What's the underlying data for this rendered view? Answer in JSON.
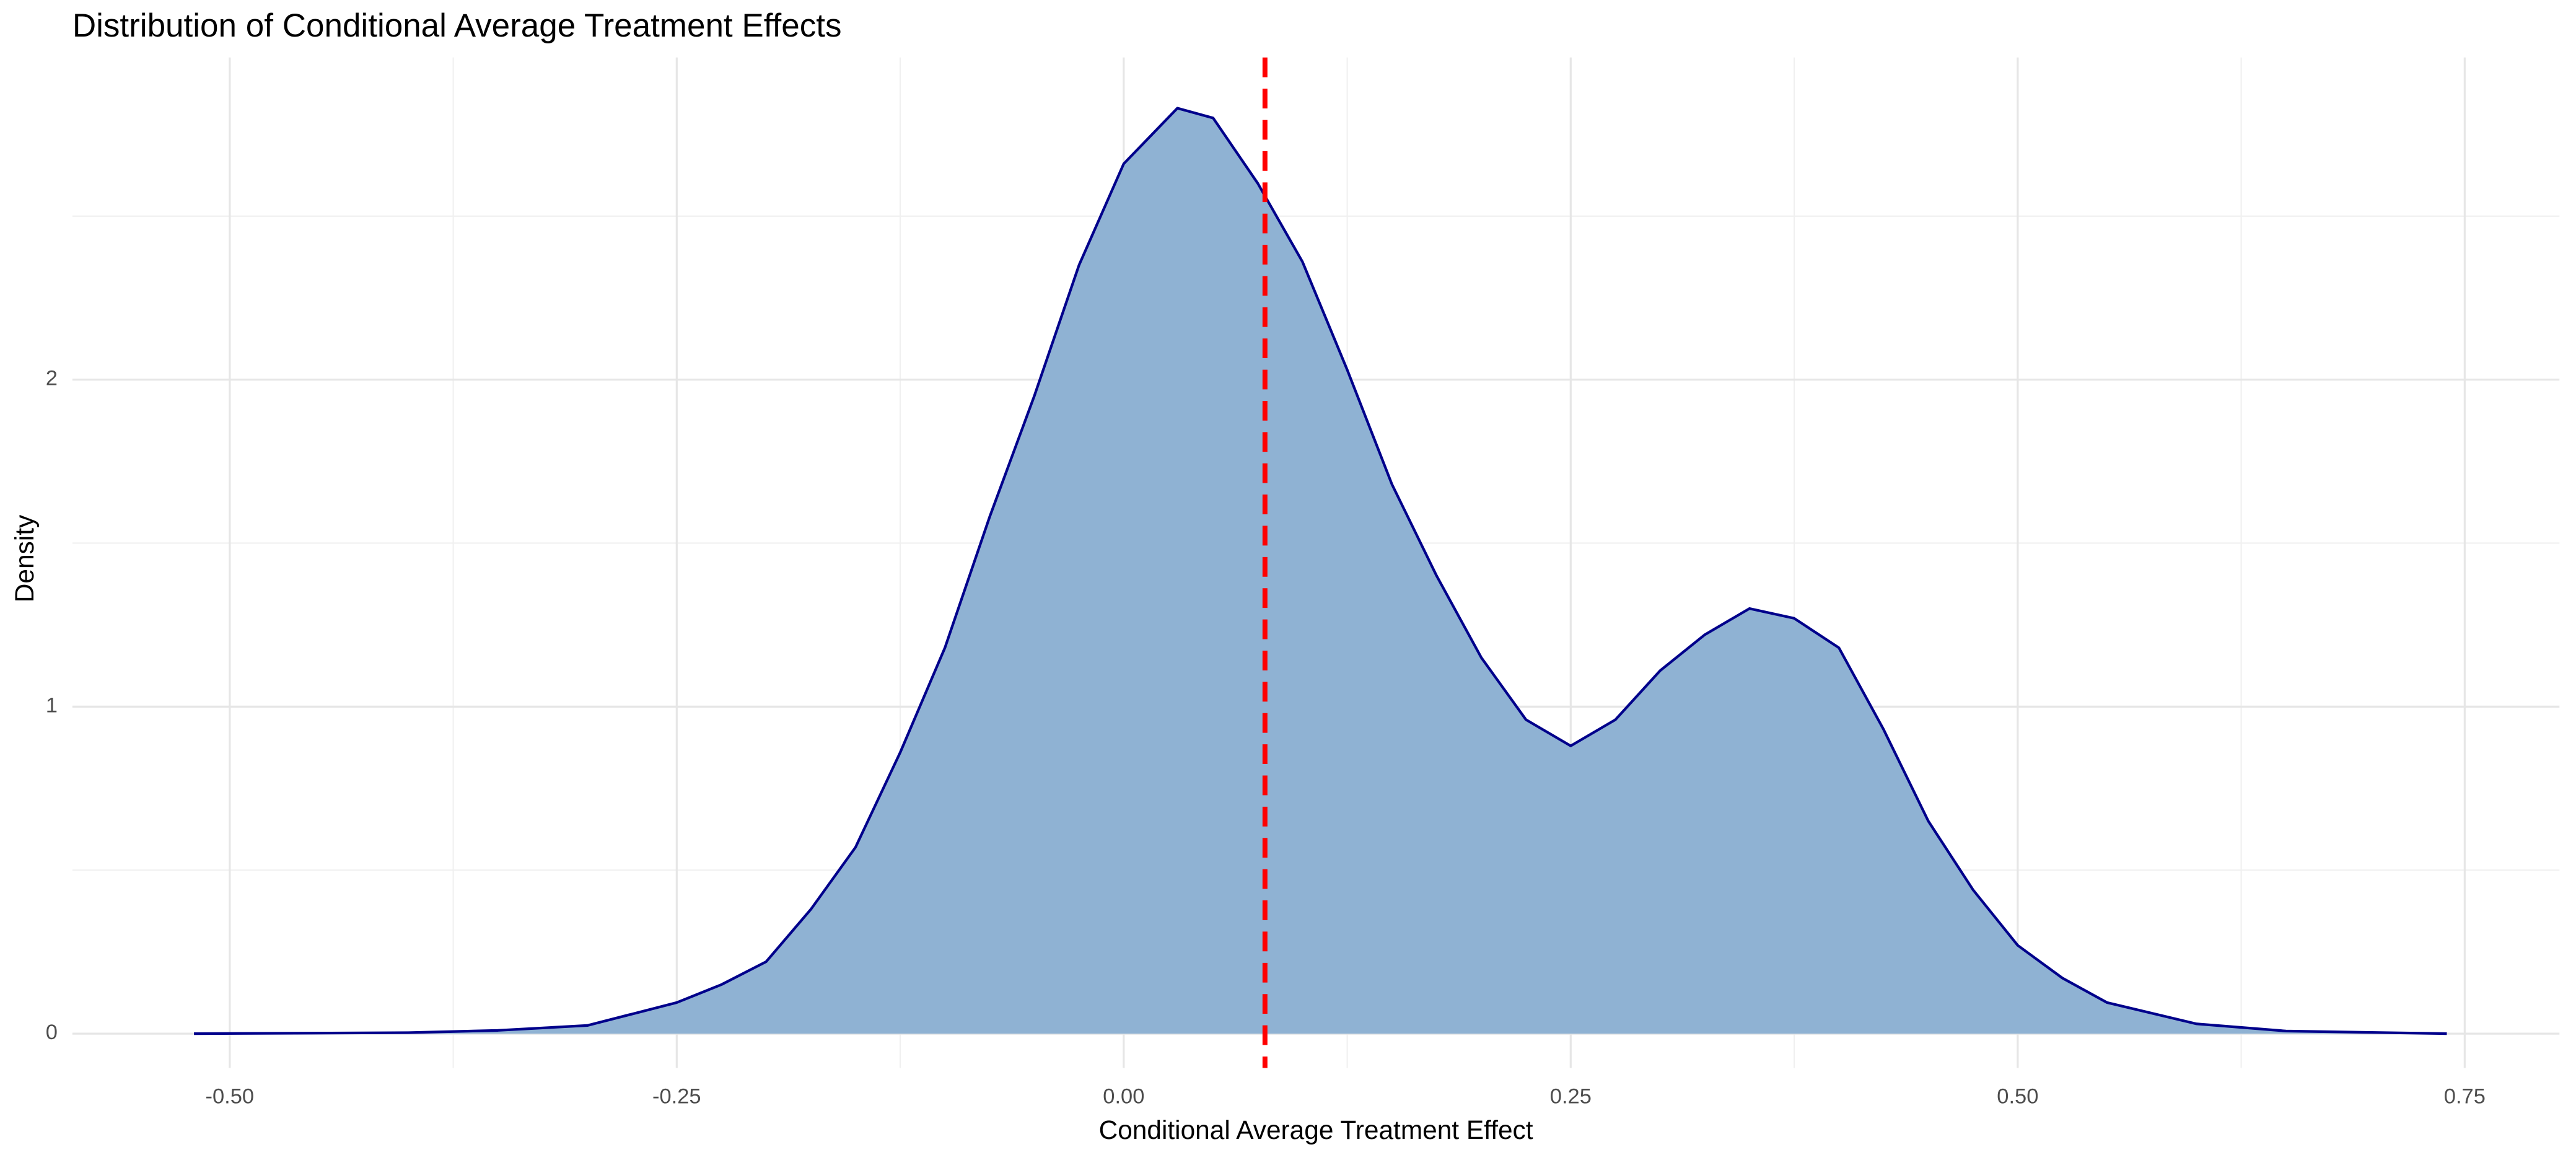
{
  "chart_data": {
    "type": "density",
    "title": "Distribution of Conditional Average Treatment Effects",
    "x_label": "Conditional Average Treatment Effect",
    "y_label": "Density",
    "x": [
      -0.52,
      -0.4,
      -0.35,
      -0.3,
      -0.25,
      -0.225,
      -0.2,
      -0.175,
      -0.15,
      -0.125,
      -0.1,
      -0.075,
      -0.05,
      -0.025,
      0,
      0.03,
      0.05,
      0.075,
      0.1,
      0.125,
      0.15,
      0.175,
      0.2,
      0.225,
      0.25,
      0.275,
      0.3,
      0.325,
      0.35,
      0.375,
      0.4,
      0.425,
      0.45,
      0.475,
      0.5,
      0.525,
      0.55,
      0.6,
      0.65,
      0.74
    ],
    "series": [
      {
        "fill": "#8fb2d3",
        "color": "#00008b",
        "values": [
          0,
          0.003,
          0.01,
          0.025,
          0.095,
          0.15,
          0.22,
          0.38,
          0.57,
          0.86,
          1.18,
          1.58,
          1.95,
          2.35,
          2.66,
          2.83,
          2.8,
          2.6,
          2.36,
          2.03,
          1.68,
          1.4,
          1.15,
          0.96,
          0.88,
          0.96,
          1.11,
          1.22,
          1.3,
          1.27,
          1.18,
          0.93,
          0.65,
          0.44,
          0.27,
          0.17,
          0.095,
          0.03,
          0.008,
          0
        ]
      }
    ],
    "reference_line": {
      "x": 0.079,
      "color": "#ff0000",
      "dashed": true
    },
    "xlim": [
      -0.588,
      0.803
    ],
    "ylim": [
      -0.105,
      2.985
    ],
    "xticks": [
      {
        "value": -0.5,
        "label": "-0.50"
      },
      {
        "value": -0.25,
        "label": "-0.25"
      },
      {
        "value": 0,
        "label": "0.00"
      },
      {
        "value": 0.25,
        "label": "0.25"
      },
      {
        "value": 0.5,
        "label": "0.50"
      },
      {
        "value": 0.75,
        "label": "0.75"
      }
    ],
    "yticks": [
      0,
      1,
      2
    ],
    "x_minor_ticks": [
      -0.375,
      -0.125,
      0.125,
      0.375,
      0.625
    ],
    "y_minor_ticks": [
      0.5,
      1.5,
      2.5
    ],
    "grid": true
  }
}
